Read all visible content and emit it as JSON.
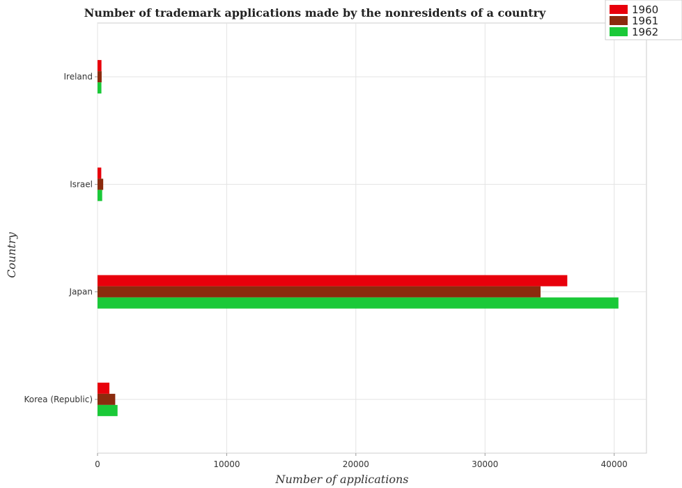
{
  "chart_data": {
    "type": "bar",
    "orientation": "horizontal",
    "title": "Number of trademark applications made by the nonresidents of a country",
    "xlabel": "Number of applications",
    "ylabel": "Country",
    "categories": [
      "Ireland",
      "Israel",
      "Japan",
      "Korea (Republic)"
    ],
    "series": [
      {
        "name": "1960",
        "color": "#e8000b",
        "values": [
          305,
          290,
          36370,
          920
        ]
      },
      {
        "name": "1961",
        "color": "#8b2b0e",
        "values": [
          320,
          440,
          34300,
          1370
        ]
      },
      {
        "name": "1962",
        "color": "#1ac938",
        "values": [
          300,
          360,
          40330,
          1550
        ]
      }
    ],
    "xlim": [
      0,
      42500
    ],
    "xticks": [
      0,
      10000,
      20000,
      30000,
      40000
    ],
    "xtick_labels": [
      "0",
      "10000",
      "20000",
      "30000",
      "40000"
    ],
    "grid": true,
    "legend_position": "top-right"
  }
}
